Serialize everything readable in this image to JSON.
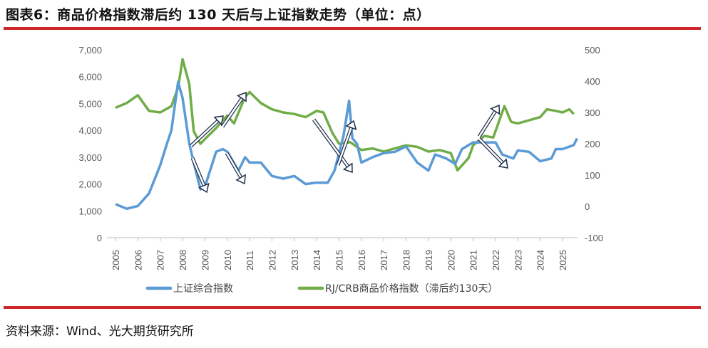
{
  "title": "图表6：商品价格指数滞后约 130 天后与上证指数走势（单位：点）",
  "source": "资料来源：Wind、光大期货研究所",
  "chart_data": {
    "type": "line",
    "title": "",
    "x_ticks": [
      "2005",
      "2006",
      "2007",
      "2008",
      "2009",
      "2010",
      "2011",
      "2012",
      "2013",
      "2014",
      "2015",
      "2016",
      "2017",
      "2018",
      "2019",
      "2020",
      "2021",
      "2022",
      "2023",
      "2024",
      "2025"
    ],
    "y_left": {
      "ylim": [
        0,
        7000
      ],
      "ticks": [
        "0",
        "1,000",
        "2,000",
        "3,000",
        "4,000",
        "5,000",
        "6,000",
        "7,000"
      ]
    },
    "y_right": {
      "ylim": [
        -100,
        500
      ],
      "ticks": [
        "-100",
        "0",
        "100",
        "200",
        "300",
        "400",
        "500"
      ]
    },
    "grid": false,
    "legend_position": "bottom",
    "series": [
      {
        "name": "上证综合指数",
        "axis": "left",
        "color": "#5b9bd5",
        "x": [
          2005.0,
          2005.5,
          2006.0,
          2006.5,
          2007.0,
          2007.3,
          2007.5,
          2007.8,
          2008.0,
          2008.3,
          2008.5,
          2008.8,
          2009.0,
          2009.5,
          2009.8,
          2010.0,
          2010.5,
          2010.8,
          2011.0,
          2011.5,
          2012.0,
          2012.5,
          2013.0,
          2013.5,
          2014.0,
          2014.5,
          2014.8,
          2015.2,
          2015.45,
          2015.6,
          2015.8,
          2016.0,
          2016.5,
          2017.0,
          2017.5,
          2018.0,
          2018.5,
          2019.0,
          2019.3,
          2019.8,
          2020.2,
          2020.5,
          2021.0,
          2021.5,
          2022.0,
          2022.3,
          2022.8,
          2023.0,
          2023.5,
          2024.0,
          2024.5,
          2024.7,
          2025.0,
          2025.5,
          2025.65
        ],
        "y": [
          1250,
          1080,
          1180,
          1650,
          2700,
          3500,
          4000,
          5800,
          5200,
          3500,
          2800,
          1800,
          1900,
          3200,
          3300,
          3200,
          2500,
          3000,
          2800,
          2800,
          2300,
          2200,
          2300,
          2000,
          2050,
          2050,
          2500,
          3800,
          5100,
          3700,
          3500,
          2800,
          3000,
          3150,
          3200,
          3400,
          2800,
          2500,
          3100,
          2950,
          2750,
          3300,
          3550,
          3550,
          3550,
          3100,
          2950,
          3250,
          3200,
          2850,
          2950,
          3300,
          3300,
          3450,
          3700
        ]
      },
      {
        "name": "RJ/CRB商品价格指数（滞后约130天）",
        "axis": "right",
        "color": "#70ad47",
        "x": [
          2005.0,
          2005.5,
          2006.0,
          2006.5,
          2007.0,
          2007.5,
          2007.8,
          2008.0,
          2008.3,
          2008.5,
          2008.8,
          2009.0,
          2009.5,
          2009.8,
          2010.0,
          2010.3,
          2010.8,
          2011.0,
          2011.5,
          2012.0,
          2012.5,
          2013.0,
          2013.5,
          2014.0,
          2014.3,
          2014.7,
          2015.0,
          2015.5,
          2016.0,
          2016.5,
          2017.0,
          2017.5,
          2018.0,
          2018.5,
          2019.0,
          2019.5,
          2020.0,
          2020.3,
          2020.8,
          2021.0,
          2021.5,
          2021.9,
          2022.2,
          2022.4,
          2022.7,
          2023.0,
          2023.5,
          2024.0,
          2024.3,
          2024.7,
          2025.0,
          2025.3,
          2025.5
        ],
        "y": [
          315,
          330,
          355,
          305,
          300,
          320,
          380,
          470,
          390,
          240,
          200,
          215,
          250,
          275,
          290,
          265,
          350,
          365,
          330,
          310,
          300,
          295,
          285,
          305,
          300,
          235,
          200,
          205,
          180,
          185,
          175,
          185,
          195,
          190,
          175,
          180,
          170,
          115,
          155,
          195,
          225,
          220,
          280,
          320,
          270,
          265,
          275,
          285,
          310,
          305,
          300,
          310,
          295
        ]
      }
    ]
  }
}
